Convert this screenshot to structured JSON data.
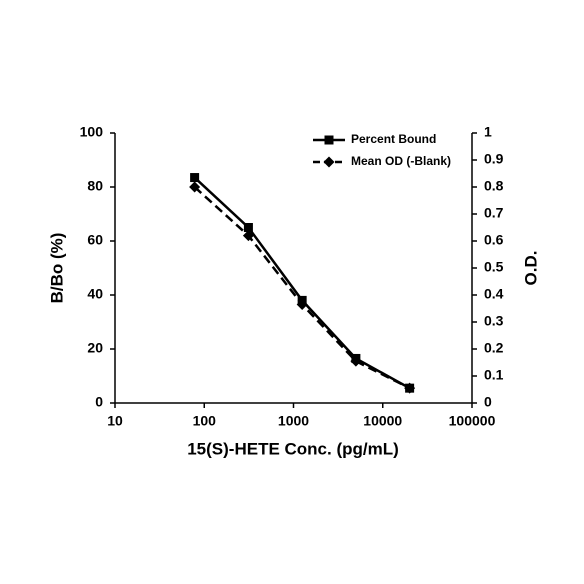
{
  "chart_data": {
    "type": "line",
    "xlabel": "15(S)-HETE Conc. (pg/mL)",
    "ylabel": "B/Bo (%)",
    "y2label": "O.D.",
    "x": [
      78,
      312.5,
      1250,
      5000,
      20000
    ],
    "xscale": "log",
    "xlim": [
      10,
      100000
    ],
    "xticks": [
      10,
      100,
      1000,
      10000,
      100000
    ],
    "ylim": [
      0,
      100
    ],
    "yticks": [
      0,
      20,
      40,
      60,
      80,
      100
    ],
    "y2lim": [
      0,
      1
    ],
    "y2ticks": [
      0,
      0.1,
      0.2,
      0.3,
      0.4,
      0.5,
      0.6,
      0.7,
      0.8,
      0.9,
      1
    ],
    "legend": "top-right",
    "series": [
      {
        "name": "Percent Bound",
        "color": "#000000",
        "marker": "square",
        "dashed": false,
        "values": [
          83.5,
          65,
          38,
          16.5,
          5.5
        ]
      },
      {
        "name": "Mean OD (-Blank)",
        "color": "#000000",
        "marker": "diamond",
        "dashed": true,
        "axis": "y2",
        "values": [
          0.8,
          0.62,
          0.365,
          0.155,
          0.055
        ]
      }
    ]
  }
}
